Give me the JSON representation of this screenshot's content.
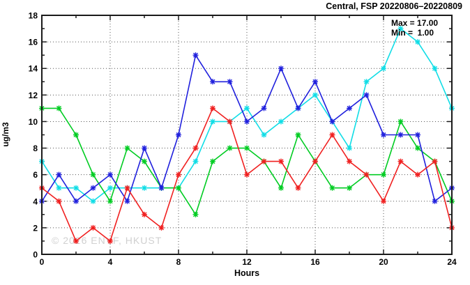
{
  "header": {
    "title": "Central, FSP 20220806–20220809"
  },
  "stats": {
    "max_line": "Max = 17.00",
    "min_line": "Min =  1.00"
  },
  "watermark": {
    "text": "© 2026 ENVF, HKUST"
  },
  "chart_data": {
    "type": "line",
    "title": "Central, FSP 20220806–20220809",
    "xlabel": "Hours",
    "ylabel": "ug/m3",
    "xlim": [
      0,
      24
    ],
    "ylim": [
      0,
      18
    ],
    "grid": "dotted",
    "legend": "none",
    "annotations": {
      "max": 17.0,
      "min": 1.0
    },
    "x_major_ticks": [
      0,
      4,
      8,
      12,
      16,
      20,
      24
    ],
    "x_minor_ticks": [
      2,
      6,
      10,
      14,
      18,
      22
    ],
    "y_major_ticks": [
      0,
      2,
      4,
      6,
      8,
      10,
      12,
      14,
      16,
      18
    ],
    "y_minor_ticks": [
      1,
      3,
      5,
      7,
      9,
      11,
      13,
      15,
      17
    ],
    "x_gridlines": [
      4,
      8,
      12,
      16,
      20
    ],
    "y_gridlines": [
      2,
      4,
      6,
      8,
      10,
      12,
      14,
      16
    ],
    "x": [
      0,
      1,
      2,
      3,
      4,
      5,
      6,
      7,
      8,
      9,
      10,
      11,
      12,
      13,
      14,
      15,
      16,
      17,
      18,
      19,
      20,
      21,
      22,
      23,
      24
    ],
    "series": [
      {
        "name": "cyan",
        "color": "#10dde6",
        "values": [
          7,
          5,
          5,
          4,
          5,
          5,
          5,
          5,
          5,
          7,
          10,
          10,
          11,
          9,
          10,
          11,
          12,
          10,
          8,
          13,
          14,
          17,
          16,
          14,
          11
        ]
      },
      {
        "name": "green",
        "color": "#00cc22",
        "values": [
          11,
          11,
          9,
          6,
          4,
          8,
          7,
          5,
          5,
          3,
          7,
          8,
          8,
          7,
          5,
          9,
          7,
          5,
          5,
          6,
          6,
          10,
          8,
          7,
          4
        ]
      },
      {
        "name": "blue",
        "color": "#2020dd",
        "values": [
          4,
          6,
          4,
          5,
          6,
          4,
          8,
          5,
          9,
          15,
          13,
          13,
          10,
          11,
          14,
          11,
          13,
          10,
          11,
          12,
          9,
          9,
          9,
          4,
          5
        ]
      },
      {
        "name": "red",
        "color": "#f02020",
        "values": [
          5,
          4,
          1,
          2,
          1,
          5,
          3,
          2,
          6,
          8,
          11,
          10,
          6,
          7,
          7,
          5,
          7,
          9,
          7,
          6,
          4,
          7,
          6,
          7,
          2
        ]
      }
    ],
    "style": {
      "frame_color": "#1a1a1a",
      "grid_color": "#555555",
      "tick_color": "#1a1a1a",
      "marker": "star"
    }
  }
}
